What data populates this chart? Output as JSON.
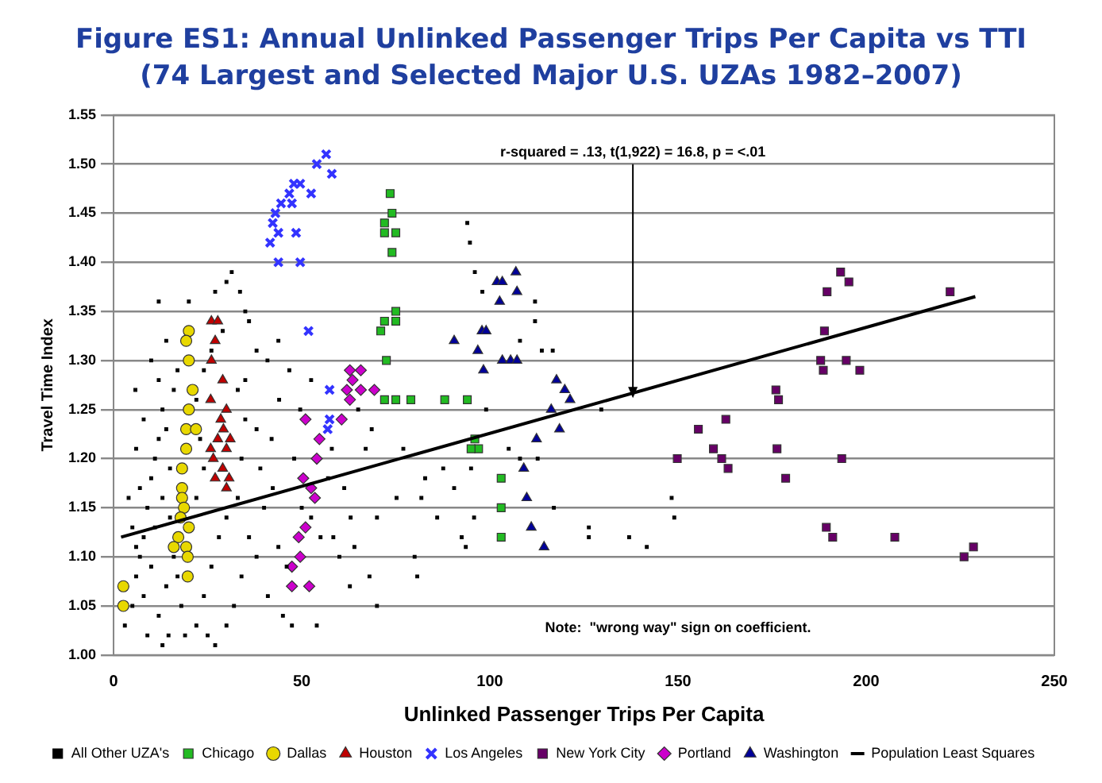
{
  "chart_data": {
    "type": "scatter",
    "title": "Figure ES1: Annual Unlinked Passenger Trips Per Capita vs TTI\n(74 Largest and Selected Major U.S. UZAs 1982–2007)",
    "xlabel": "Unlinked Passenger Trips Per Capita",
    "ylabel": "Travel Time Index",
    "xlim": [
      0,
      250
    ],
    "xticks": [
      0,
      50,
      100,
      150,
      200,
      250
    ],
    "ylim": [
      1,
      1.55
    ],
    "yticks": [
      {
        "value": 1,
        "label": "1.00"
      },
      {
        "value": 1.05,
        "label": "1.05"
      },
      {
        "value": 1.1,
        "label": "1.10"
      },
      {
        "value": 1.15,
        "label": "1.15"
      },
      {
        "value": 1.2,
        "label": "1.20"
      },
      {
        "value": 1.25,
        "label": "1.25"
      },
      {
        "value": 1.3,
        "label": "1.30"
      },
      {
        "value": 1.35,
        "label": "1.35"
      },
      {
        "value": 1.4,
        "label": "1.40"
      },
      {
        "value": 1.45,
        "label": "1.45"
      },
      {
        "value": 1.5,
        "label": "1.50"
      },
      {
        "value": 1.55,
        "label": "1.55"
      }
    ],
    "grid": "y",
    "legend": "bottom",
    "annotations": [
      {
        "text": "r-squared = .13, t(1,922) = 16.8, p = <.01",
        "x": 138,
        "y": 1.26
      },
      "Note:  \"wrong way\" sign on coefficient."
    ],
    "series": [
      {
        "name": "All Other UZA's",
        "color": "#000000",
        "marker": "square",
        "x": [
          31.4,
          30,
          27,
          33.6,
          12,
          35,
          14,
          10,
          38,
          43.8,
          40.9,
          46.7,
          35,
          5.8,
          52.5,
          68.6,
          67,
          87.6,
          95,
          90.5,
          81.8,
          86,
          70,
          80,
          80.7,
          70,
          54,
          47.4,
          58.4,
          64,
          62.8,
          41,
          13,
          14.6,
          3,
          52.5,
          43.8,
          42.3,
          38,
          49.6,
          61.3,
          75.2,
          93.6,
          95.8,
          77,
          82.8,
          94,
          94.7,
          96,
          98,
          112,
          112,
          108,
          113.8,
          116.7,
          129.6,
          99,
          112.7,
          108,
          105,
          117,
          126.3,
          126.3,
          137,
          141.7,
          148.3,
          149,
          92.5,
          5,
          6,
          7,
          8,
          9,
          10,
          11,
          12,
          13,
          6,
          8,
          10,
          12,
          14,
          16,
          9,
          11,
          13,
          15,
          14,
          16,
          17,
          12,
          7,
          6,
          8,
          22,
          24,
          26,
          28,
          30,
          22,
          24,
          23,
          22,
          24,
          26,
          33,
          35,
          34,
          33,
          36,
          34,
          32,
          30,
          25,
          38,
          40,
          39,
          42,
          44,
          46,
          45,
          48,
          50,
          55,
          57,
          60,
          63,
          65,
          68,
          58,
          19,
          18,
          20,
          29,
          36,
          27,
          5,
          4,
          15,
          17
        ],
        "values": [
          1.39,
          1.38,
          1.37,
          1.37,
          1.36,
          1.35,
          1.32,
          1.3,
          1.31,
          1.32,
          1.3,
          1.29,
          1.28,
          1.27,
          1.28,
          1.23,
          1.21,
          1.19,
          1.19,
          1.17,
          1.16,
          1.14,
          1.14,
          1.1,
          1.08,
          1.05,
          1.03,
          1.03,
          1.12,
          1.11,
          1.07,
          1.06,
          1.01,
          1.02,
          1.03,
          1.14,
          1.11,
          1.17,
          1.23,
          1.25,
          1.17,
          1.16,
          1.11,
          1.14,
          1.21,
          1.18,
          1.44,
          1.42,
          1.39,
          1.37,
          1.36,
          1.34,
          1.32,
          1.31,
          1.31,
          1.25,
          1.25,
          1.2,
          1.2,
          1.21,
          1.15,
          1.13,
          1.12,
          1.12,
          1.11,
          1.16,
          1.14,
          1.12,
          1.05,
          1.08,
          1.1,
          1.12,
          1.15,
          1.18,
          1.2,
          1.22,
          1.25,
          1.11,
          1.06,
          1.09,
          1.04,
          1.07,
          1.1,
          1.02,
          1.13,
          1.16,
          1.19,
          1.23,
          1.27,
          1.29,
          1.28,
          1.17,
          1.21,
          1.24,
          1.03,
          1.06,
          1.09,
          1.12,
          1.14,
          1.16,
          1.19,
          1.22,
          1.26,
          1.29,
          1.31,
          1.27,
          1.24,
          1.2,
          1.16,
          1.12,
          1.08,
          1.05,
          1.03,
          1.02,
          1.1,
          1.15,
          1.19,
          1.22,
          1.26,
          1.09,
          1.04,
          1.2,
          1.15,
          1.12,
          1.18,
          1.1,
          1.14,
          1.25,
          1.08,
          1.21,
          1.02,
          1.05,
          1.36,
          1.33,
          1.34,
          1.01,
          1.13,
          1.16,
          1.14,
          1.08
        ]
      },
      {
        "name": "Chicago",
        "color": "#22bb22",
        "marker": "square",
        "x": [
          73.5,
          72,
          74,
          72,
          75,
          74,
          71,
          72,
          75,
          75,
          72.5,
          72,
          75,
          79,
          88,
          94,
          96,
          97,
          95,
          103,
          103,
          103
        ],
        "values": [
          1.47,
          1.44,
          1.45,
          1.43,
          1.43,
          1.41,
          1.33,
          1.34,
          1.35,
          1.34,
          1.3,
          1.26,
          1.26,
          1.26,
          1.26,
          1.26,
          1.22,
          1.21,
          1.21,
          1.18,
          1.15,
          1.12
        ]
      },
      {
        "name": "Dallas",
        "color": "#e8d800",
        "marker": "circle",
        "x": [
          20,
          19.3,
          20,
          21,
          20,
          19.3,
          21.9,
          19.3,
          18.2,
          18.2,
          18.2,
          18.7,
          17.8,
          20,
          17.2,
          16,
          19.3,
          19.7,
          19.7,
          2.6,
          2.6
        ],
        "values": [
          1.33,
          1.32,
          1.3,
          1.27,
          1.25,
          1.23,
          1.23,
          1.21,
          1.19,
          1.17,
          1.16,
          1.15,
          1.14,
          1.13,
          1.12,
          1.11,
          1.11,
          1.1,
          1.08,
          1.07,
          1.05
        ]
      },
      {
        "name": "Houston",
        "color": "#c00000",
        "marker": "triangle",
        "x": [
          26,
          27.7,
          27,
          26,
          29,
          25.8,
          30,
          28.5,
          29.2,
          27.7,
          31,
          25.8,
          30,
          26.5,
          29,
          27,
          30.7,
          30
        ],
        "values": [
          1.34,
          1.34,
          1.32,
          1.3,
          1.28,
          1.26,
          1.25,
          1.24,
          1.23,
          1.22,
          1.22,
          1.21,
          1.21,
          1.2,
          1.19,
          1.18,
          1.18,
          1.17
        ]
      },
      {
        "name": "Los Angeles",
        "color": "#3333ff",
        "marker": "cross",
        "x": [
          56.5,
          54,
          58,
          47.9,
          49.6,
          52.5,
          46.7,
          44.5,
          47.4,
          43,
          42.3,
          48.5,
          43.8,
          41.6,
          43.8,
          49.6,
          51.8,
          57.4,
          57.4,
          56.9
        ],
        "values": [
          1.51,
          1.5,
          1.49,
          1.48,
          1.48,
          1.47,
          1.47,
          1.46,
          1.46,
          1.45,
          1.44,
          1.43,
          1.43,
          1.42,
          1.4,
          1.4,
          1.33,
          1.27,
          1.24,
          1.23
        ]
      },
      {
        "name": "New York City",
        "color": "#660066",
        "marker": "square",
        "x": [
          193.2,
          195.4,
          189.6,
          222.3,
          188.9,
          187.9,
          188.6,
          194.7,
          198.3,
          176,
          176.7,
          162.7,
          155.4,
          159.4,
          176.3,
          161.6,
          163.3,
          149.8,
          193.5,
          178.6,
          189.4,
          191.1,
          207.6,
          226,
          228.5
        ],
        "values": [
          1.39,
          1.38,
          1.37,
          1.37,
          1.33,
          1.3,
          1.29,
          1.3,
          1.29,
          1.27,
          1.26,
          1.24,
          1.23,
          1.21,
          1.21,
          1.2,
          1.19,
          1.2,
          1.2,
          1.18,
          1.13,
          1.12,
          1.12,
          1.1,
          1.11
        ]
      },
      {
        "name": "Portland",
        "color": "#cc00cc",
        "marker": "diamond",
        "x": [
          65.7,
          62.8,
          63.5,
          69.3,
          62,
          65.7,
          62.8,
          60.6,
          51,
          54.7,
          54,
          50.4,
          52.5,
          53.5,
          51,
          49.2,
          49.6,
          47.4,
          47.4,
          52
        ],
        "values": [
          1.29,
          1.29,
          1.28,
          1.27,
          1.27,
          1.27,
          1.26,
          1.24,
          1.24,
          1.22,
          1.2,
          1.18,
          1.17,
          1.16,
          1.13,
          1.12,
          1.1,
          1.09,
          1.07,
          1.07
        ]
      },
      {
        "name": "Washington",
        "color": "#000099",
        "marker": "triangle",
        "x": [
          106.9,
          101.9,
          103.3,
          102.6,
          107.2,
          97.9,
          99,
          96.8,
          98.3,
          103.3,
          105.5,
          107.2,
          117.7,
          119.9,
          121.3,
          116.3,
          118.5,
          112.4,
          109,
          109.8,
          111,
          114.4,
          90.5
        ],
        "values": [
          1.39,
          1.38,
          1.38,
          1.36,
          1.37,
          1.33,
          1.33,
          1.31,
          1.29,
          1.3,
          1.3,
          1.3,
          1.28,
          1.27,
          1.26,
          1.25,
          1.23,
          1.22,
          1.19,
          1.16,
          1.13,
          1.11,
          1.32
        ]
      },
      {
        "name": "Population Least Squares",
        "color": "#000000",
        "type": "line",
        "marker": "none",
        "x": [
          2,
          229
        ],
        "values": [
          1.12,
          1.365
        ]
      }
    ]
  }
}
